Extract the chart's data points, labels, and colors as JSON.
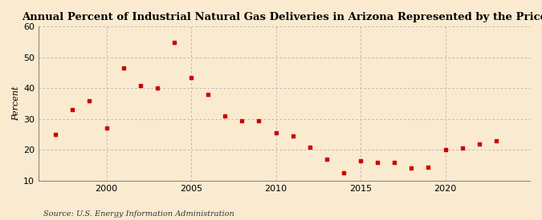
{
  "title": "Annual Percent of Industrial Natural Gas Deliveries in Arizona Represented by the Price",
  "ylabel": "Percent",
  "source": "Source: U.S. Energy Information Administration",
  "background_color": "#faebd0",
  "marker_color": "#cc0000",
  "ylim": [
    10,
    60
  ],
  "yticks": [
    10,
    20,
    30,
    40,
    50,
    60
  ],
  "xlim": [
    1996,
    2025
  ],
  "xticks": [
    2000,
    2005,
    2010,
    2015,
    2020
  ],
  "data": [
    [
      1997,
      25.0
    ],
    [
      1998,
      33.0
    ],
    [
      1999,
      36.0
    ],
    [
      2000,
      27.0
    ],
    [
      2001,
      46.5
    ],
    [
      2002,
      41.0
    ],
    [
      2003,
      40.0
    ],
    [
      2004,
      55.0
    ],
    [
      2005,
      43.5
    ],
    [
      2006,
      38.0
    ],
    [
      2007,
      31.0
    ],
    [
      2008,
      29.5
    ],
    [
      2009,
      29.5
    ],
    [
      2010,
      25.5
    ],
    [
      2011,
      24.5
    ],
    [
      2012,
      21.0
    ],
    [
      2013,
      17.0
    ],
    [
      2014,
      12.5
    ],
    [
      2015,
      16.5
    ],
    [
      2016,
      16.0
    ],
    [
      2017,
      16.0
    ],
    [
      2018,
      14.0
    ],
    [
      2019,
      14.5
    ],
    [
      2020,
      20.0
    ],
    [
      2021,
      20.5
    ],
    [
      2022,
      22.0
    ],
    [
      2023,
      23.0
    ]
  ]
}
